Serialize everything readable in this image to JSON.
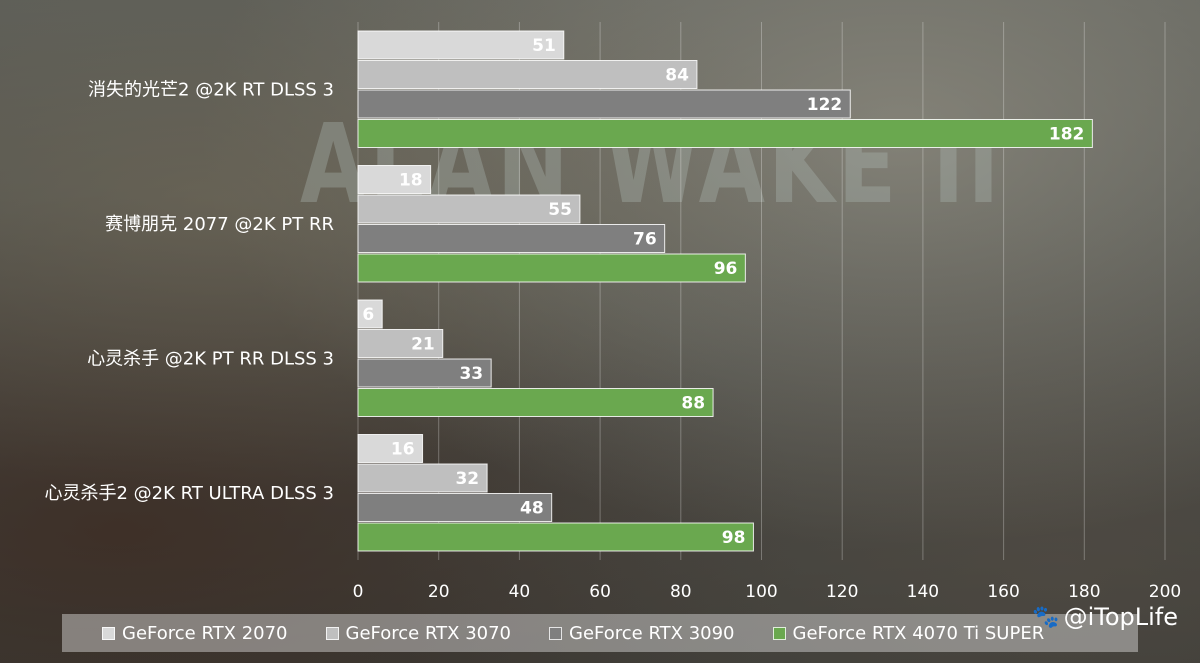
{
  "chart_data": {
    "type": "bar",
    "orientation": "horizontal",
    "categories": [
      "消失的光芒2 @2K RT DLSS 3",
      "赛博朋克 2077 @2K PT RR",
      "心灵杀手 @2K PT RR DLSS 3",
      "心灵杀手2 @2K RT ULTRA DLSS 3"
    ],
    "series": [
      {
        "name": "GeForce RTX 2070",
        "values": [
          51,
          18,
          6,
          16
        ],
        "color": "#d9d9d9"
      },
      {
        "name": "GeForce RTX 3070",
        "values": [
          84,
          55,
          21,
          32
        ],
        "color": "#bfbfbf"
      },
      {
        "name": "GeForce RTX 3090",
        "values": [
          122,
          76,
          33,
          48
        ],
        "color": "#7f7f7f"
      },
      {
        "name": "GeForce RTX 4070 Ti SUPER",
        "values": [
          182,
          96,
          88,
          98
        ],
        "color": "#6aa84f"
      }
    ],
    "xticks": [
      0,
      20,
      40,
      60,
      80,
      100,
      120,
      140,
      160,
      180,
      200
    ],
    "xlim": [
      0,
      200
    ],
    "grid": true,
    "legend": "bottom"
  },
  "credit": {
    "icon": "paw-icon",
    "text": "@iTopLife"
  }
}
